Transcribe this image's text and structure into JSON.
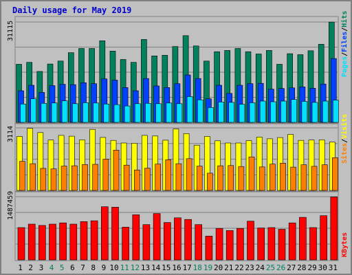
{
  "title": "Daily usage for May 2019",
  "colors": {
    "background": "#c0c0c0",
    "plot_background": "#c0c0c0",
    "title": "#0000cc",
    "hits": "#00805c",
    "files": "#0040ff",
    "pages": "#00e0ff",
    "visits": "#ffff00",
    "sites": "#ff8000",
    "kbytes": "#ff0000",
    "weekday_label": "#000000",
    "weekend_label": "#00805c"
  },
  "chart_data": [
    {
      "type": "bar",
      "title": "Daily usage for May 2019",
      "categories": [
        "1",
        "2",
        "3",
        "4",
        "5",
        "6",
        "7",
        "8",
        "9",
        "10",
        "11",
        "12",
        "13",
        "14",
        "15",
        "16",
        "17",
        "18",
        "19",
        "20",
        "21",
        "22",
        "23",
        "24",
        "25",
        "26",
        "27",
        "28",
        "29",
        "30",
        "31"
      ],
      "weekend_days": [
        "4",
        "5",
        "11",
        "12",
        "18",
        "19",
        "25",
        "26"
      ],
      "max_label": "31115",
      "right_label": [
        "Pages",
        "/",
        "Files",
        "/",
        "Hits"
      ],
      "y_range": [
        0,
        31115
      ],
      "grid": true,
      "series": [
        {
          "name": "Hits",
          "values": [
            18000,
            18600,
            15800,
            18100,
            19000,
            21600,
            22900,
            22900,
            25300,
            22100,
            19500,
            18600,
            25700,
            20600,
            20800,
            23500,
            26900,
            23700,
            19000,
            21900,
            22300,
            22900,
            21900,
            21200,
            22300,
            18000,
            21300,
            21000,
            22200,
            24200,
            31100
          ]
        },
        {
          "name": "Files",
          "values": [
            9800,
            11500,
            9300,
            11400,
            11800,
            11700,
            12300,
            12000,
            13500,
            13100,
            10800,
            9800,
            13600,
            11300,
            10800,
            12000,
            14700,
            13600,
            7300,
            11500,
            9000,
            11500,
            12000,
            12100,
            10300,
            10500,
            10700,
            11000,
            10600,
            11900,
            19800
          ]
        },
        {
          "name": "Pages",
          "values": [
            5700,
            7300,
            5900,
            6000,
            6700,
            5800,
            6100,
            6000,
            5700,
            5500,
            5100,
            5800,
            5900,
            5800,
            6000,
            5800,
            8000,
            7000,
            4600,
            6300,
            6200,
            5600,
            6100,
            6600,
            6400,
            6600,
            7100,
            6500,
            6200,
            6600,
            6900
          ]
        }
      ]
    },
    {
      "type": "bar",
      "categories": [
        "1",
        "2",
        "3",
        "4",
        "5",
        "6",
        "7",
        "8",
        "9",
        "10",
        "11",
        "12",
        "13",
        "14",
        "15",
        "16",
        "17",
        "18",
        "19",
        "20",
        "21",
        "22",
        "23",
        "24",
        "25",
        "26",
        "27",
        "28",
        "29",
        "30",
        "31"
      ],
      "max_label": "3114",
      "right_label": [
        "Sites",
        "/",
        "Visits"
      ],
      "y_range": [
        0,
        3114
      ],
      "grid": true,
      "series": [
        {
          "name": "Visits",
          "values": [
            2690,
            3090,
            2880,
            2510,
            2740,
            2700,
            2520,
            3040,
            2640,
            2490,
            2360,
            2350,
            2740,
            2710,
            2500,
            3060,
            2830,
            2250,
            2690,
            2470,
            2360,
            2360,
            2480,
            2660,
            2570,
            2630,
            2790,
            2490,
            2510,
            2520,
            2410
          ]
        },
        {
          "name": "Sites",
          "values": [
            1450,
            1330,
            1100,
            1070,
            1210,
            1230,
            1290,
            1300,
            1560,
            2010,
            1260,
            1020,
            1110,
            1310,
            1530,
            1330,
            1580,
            1210,
            860,
            1230,
            1240,
            1190,
            1670,
            1170,
            1310,
            1360,
            1160,
            1280,
            1200,
            1280,
            1630
          ]
        }
      ]
    },
    {
      "type": "bar",
      "categories": [
        "1",
        "2",
        "3",
        "4",
        "5",
        "6",
        "7",
        "8",
        "9",
        "10",
        "11",
        "12",
        "13",
        "14",
        "15",
        "16",
        "17",
        "18",
        "19",
        "20",
        "21",
        "22",
        "23",
        "24",
        "25",
        "26",
        "27",
        "28",
        "29",
        "30",
        "31"
      ],
      "max_label": "1487459",
      "right_label": [
        "KBytes"
      ],
      "y_range": [
        0,
        1487459
      ],
      "grid": true,
      "series": [
        {
          "name": "KBytes",
          "values": [
            760000,
            840000,
            810000,
            840000,
            870000,
            840000,
            900000,
            920000,
            1250000,
            1240000,
            770000,
            1060000,
            830000,
            1090000,
            880000,
            990000,
            950000,
            830000,
            560000,
            740000,
            690000,
            740000,
            910000,
            750000,
            760000,
            720000,
            870000,
            1000000,
            760000,
            1040000,
            1480000
          ]
        }
      ]
    }
  ]
}
